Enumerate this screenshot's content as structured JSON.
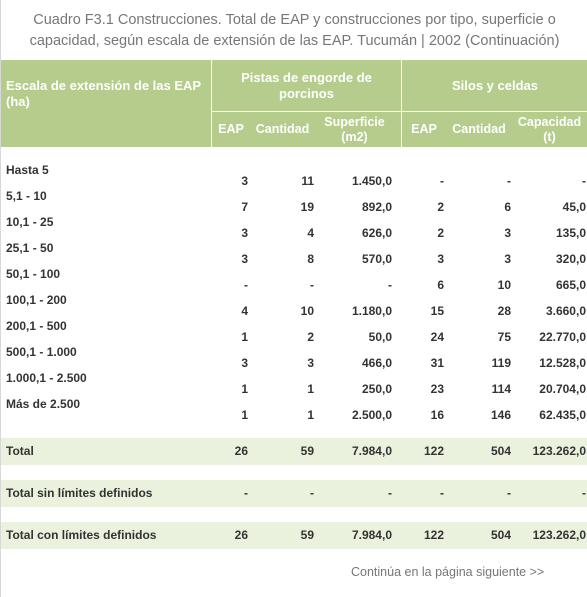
{
  "title": "Cuadro F3.1 Construcciones. Total de EAP y construcciones por tipo, superficie o capacidad, según escala de extensión de las EAP. Tucumán | 2002 (Continuación)",
  "table": {
    "header": {
      "row_label": "Escala de extensión de las EAP (ha)",
      "groups": [
        "Pistas de engorde de porcinos",
        "Silos y celdas"
      ],
      "columns": [
        "EAP",
        "Cantidad",
        "Superficie (m2)",
        "EAP",
        "Cantidad",
        "Capacidad (t)"
      ]
    },
    "rows": [
      [
        "Hasta 5",
        "3",
        "11",
        "1.450,0",
        "-",
        "-",
        "-"
      ],
      [
        "5,1 - 10",
        "7",
        "19",
        "892,0",
        "2",
        "6",
        "45,0"
      ],
      [
        "10,1 - 25",
        "3",
        "4",
        "626,0",
        "2",
        "3",
        "135,0"
      ],
      [
        "25,1 - 50",
        "3",
        "8",
        "570,0",
        "3",
        "3",
        "320,0"
      ],
      [
        "50,1 - 100",
        "-",
        "-",
        "-",
        "6",
        "10",
        "665,0"
      ],
      [
        "100,1 - 200",
        "4",
        "10",
        "1.180,0",
        "15",
        "28",
        "3.660,0"
      ],
      [
        "200,1 - 500",
        "1",
        "2",
        "50,0",
        "24",
        "75",
        "22.770,0"
      ],
      [
        "500,1 - 1.000",
        "3",
        "3",
        "466,0",
        "31",
        "119",
        "12.528,0"
      ],
      [
        "1.000,1 - 2.500",
        "1",
        "1",
        "250,0",
        "23",
        "114",
        "20.704,0"
      ],
      [
        "Más de 2.500",
        "1",
        "1",
        "2.500,0",
        "16",
        "146",
        "62.435,0"
      ]
    ],
    "totals": [
      [
        "Total",
        "26",
        "59",
        "7.984,0",
        "122",
        "504",
        "123.262,0"
      ],
      [
        "Total sin límites definidos",
        "-",
        "-",
        "-",
        "-",
        "-",
        "-"
      ],
      [
        "Total con límites definidos",
        "26",
        "59",
        "7.984,0",
        "122",
        "504",
        "123.262,0"
      ]
    ]
  },
  "footer": "Continúa en la página siguiente >>"
}
